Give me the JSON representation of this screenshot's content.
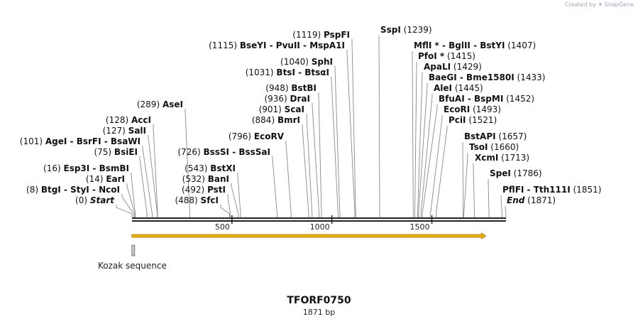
{
  "credit": {
    "prefix": "Created by",
    "brand": "SnapGene"
  },
  "sequence": {
    "name": "TFORF0750",
    "length_label": "1871 bp",
    "length": 1871
  },
  "ruler": {
    "ticks": [
      {
        "pos": 500,
        "label": "500"
      },
      {
        "pos": 1000,
        "label": "1000"
      },
      {
        "pos": 1500,
        "label": "1500"
      }
    ]
  },
  "features": [
    {
      "label": "Kozak sequence",
      "start": 1,
      "end": 10,
      "type": "misc",
      "color": "#c8c8c8"
    },
    {
      "label": "",
      "start": 1,
      "end": 1770,
      "type": "orf",
      "color": "#f2b100"
    }
  ],
  "colors": {
    "line": "#888888",
    "backbone": "#222222",
    "orf_fill": "#f2b100",
    "orf_edge": "#a87400"
  },
  "sites": [
    {
      "side": "left",
      "items": [
        {
          "name": "BtgI",
          "pos": 8
        },
        {
          "name": "StyI",
          "pos": 8
        },
        {
          "name": "NcoI",
          "pos": 8
        }
      ],
      "pos_label": "(8)"
    },
    {
      "side": "left",
      "items": [
        {
          "name": "Start",
          "pos": 0,
          "italic": true
        }
      ],
      "pos_label": "(0)"
    },
    {
      "side": "left",
      "items": [
        {
          "name": "EarI",
          "pos": 14
        }
      ],
      "pos_label": "(14)"
    },
    {
      "side": "left",
      "items": [
        {
          "name": "Esp3I",
          "pos": 16
        },
        {
          "name": "BsmBI",
          "pos": 16
        }
      ],
      "pos_label": "(16)"
    },
    {
      "side": "left",
      "items": [
        {
          "name": "BsiEI",
          "pos": 75
        }
      ],
      "pos_label": "(75)"
    },
    {
      "side": "left",
      "items": [
        {
          "name": "AgeI",
          "pos": 101
        },
        {
          "name": "BsrFI",
          "pos": 101
        },
        {
          "name": "BsaWI",
          "pos": 101
        }
      ],
      "pos_label": "(101)"
    },
    {
      "side": "left",
      "items": [
        {
          "name": "SalI",
          "pos": 127
        }
      ],
      "pos_label": "(127)"
    },
    {
      "side": "left",
      "items": [
        {
          "name": "AccI",
          "pos": 128
        }
      ],
      "pos_label": "(128)"
    },
    {
      "side": "left",
      "items": [
        {
          "name": "AseI",
          "pos": 289
        }
      ],
      "pos_label": "(289)"
    },
    {
      "side": "left",
      "items": [
        {
          "name": "SfcI",
          "pos": 488
        }
      ],
      "pos_label": "(488)"
    },
    {
      "side": "left",
      "items": [
        {
          "name": "PstI",
          "pos": 492
        }
      ],
      "pos_label": "(492)"
    },
    {
      "side": "left",
      "items": [
        {
          "name": "BanI",
          "pos": 532
        }
      ],
      "pos_label": "(532)"
    },
    {
      "side": "left",
      "items": [
        {
          "name": "BstXI",
          "pos": 543
        }
      ],
      "pos_label": "(543)"
    },
    {
      "side": "left",
      "items": [
        {
          "name": "BssSI",
          "pos": 726
        },
        {
          "name": "BssSaI",
          "pos": 726
        }
      ],
      "pos_label": "(726)"
    },
    {
      "side": "left",
      "items": [
        {
          "name": "EcoRV",
          "pos": 796
        }
      ],
      "pos_label": "(796)"
    },
    {
      "side": "left",
      "items": [
        {
          "name": "BmrI",
          "pos": 884
        }
      ],
      "pos_label": "(884)"
    },
    {
      "side": "left",
      "items": [
        {
          "name": "ScaI",
          "pos": 901
        }
      ],
      "pos_label": "(901)"
    },
    {
      "side": "left",
      "items": [
        {
          "name": "DraI",
          "pos": 936
        }
      ],
      "pos_label": "(936)"
    },
    {
      "side": "left",
      "items": [
        {
          "name": "BstBI",
          "pos": 948
        }
      ],
      "pos_label": "(948)"
    },
    {
      "side": "left",
      "items": [
        {
          "name": "BtsI",
          "pos": 1031
        },
        {
          "name": "BtsαI",
          "pos": 1031
        }
      ],
      "pos_label": "(1031)"
    },
    {
      "side": "left",
      "items": [
        {
          "name": "SphI",
          "pos": 1040
        }
      ],
      "pos_label": "(1040)"
    },
    {
      "side": "left",
      "items": [
        {
          "name": "BseYI",
          "pos": 1115
        },
        {
          "name": "PvuII",
          "pos": 1115
        },
        {
          "name": "MspA1I",
          "pos": 1115
        }
      ],
      "pos_label": "(1115)"
    },
    {
      "side": "left",
      "items": [
        {
          "name": "PspFI",
          "pos": 1119
        }
      ],
      "pos_label": "(1119)"
    },
    {
      "side": "right",
      "items": [
        {
          "name": "SspI",
          "pos": 1239
        }
      ],
      "pos_label": "(1239)"
    },
    {
      "side": "right",
      "items": [
        {
          "name": "MflI",
          "pos": 1407,
          "star": true
        },
        {
          "name": "BglII",
          "pos": 1407
        },
        {
          "name": "BstYI",
          "pos": 1407
        }
      ],
      "pos_label": "(1407)"
    },
    {
      "side": "right",
      "items": [
        {
          "name": "PfoI",
          "pos": 1415,
          "star": true
        }
      ],
      "pos_label": "(1415)"
    },
    {
      "side": "right",
      "items": [
        {
          "name": "ApaLI",
          "pos": 1429
        }
      ],
      "pos_label": "(1429)"
    },
    {
      "side": "right",
      "items": [
        {
          "name": "BaeGI",
          "pos": 1433
        },
        {
          "name": "Bme1580I",
          "pos": 1433
        }
      ],
      "pos_label": "(1433)"
    },
    {
      "side": "right",
      "items": [
        {
          "name": "AleI",
          "pos": 1445
        }
      ],
      "pos_label": "(1445)"
    },
    {
      "side": "right",
      "items": [
        {
          "name": "BfuAI",
          "pos": 1452
        },
        {
          "name": "BspMI",
          "pos": 1452
        }
      ],
      "pos_label": "(1452)"
    },
    {
      "side": "right",
      "items": [
        {
          "name": "EcoRI",
          "pos": 1493
        }
      ],
      "pos_label": "(1493)"
    },
    {
      "side": "right",
      "items": [
        {
          "name": "PciI",
          "pos": 1521
        }
      ],
      "pos_label": "(1521)"
    },
    {
      "side": "right",
      "items": [
        {
          "name": "BstAPI",
          "pos": 1657
        }
      ],
      "pos_label": "(1657)"
    },
    {
      "side": "right",
      "items": [
        {
          "name": "TsoI",
          "pos": 1660
        }
      ],
      "pos_label": "(1660)"
    },
    {
      "side": "right",
      "items": [
        {
          "name": "XcmI",
          "pos": 1713
        }
      ],
      "pos_label": "(1713)"
    },
    {
      "side": "right",
      "items": [
        {
          "name": "SpeI",
          "pos": 1786
        }
      ],
      "pos_label": "(1786)"
    },
    {
      "side": "right",
      "items": [
        {
          "name": "PflFI",
          "pos": 1851
        },
        {
          "name": "Tth111I",
          "pos": 1851
        }
      ],
      "pos_label": "(1851)"
    },
    {
      "side": "right",
      "items": [
        {
          "name": "End",
          "pos": 1871,
          "italic": true
        }
      ],
      "pos_label": "(1871)"
    }
  ]
}
